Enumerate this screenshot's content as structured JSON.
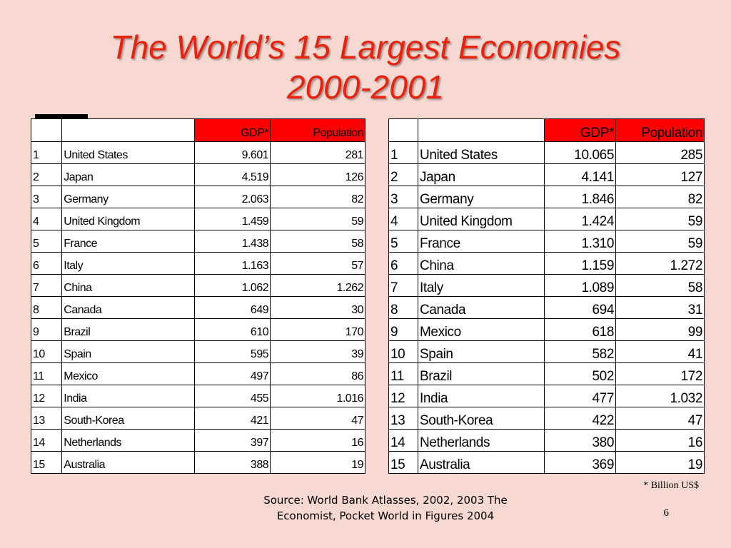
{
  "slide": {
    "title_line1": "The World’s 15 Largest Economies",
    "title_line2": "2000-2001",
    "footnote": "* Billion US$",
    "source_line1": "Source: World Bank Atlasses, 2002, 2003  The",
    "source_line2": "Economist, Pocket World in Figures 2004",
    "page_number": "6",
    "accent_color": "#e8220c",
    "header_highlight_color": "#ff0000",
    "background_color": "#f7d9d2"
  },
  "tables": [
    {
      "headers": [
        "",
        "",
        "GDP*",
        "Population"
      ],
      "rows": [
        [
          "1",
          "United States",
          "9.601",
          "281"
        ],
        [
          "2",
          "Japan",
          "4.519",
          "126"
        ],
        [
          "3",
          "Germany",
          "2.063",
          "82"
        ],
        [
          "4",
          "United Kingdom",
          "1.459",
          "59"
        ],
        [
          "5",
          "France",
          "1.438",
          "58"
        ],
        [
          "6",
          "Italy",
          "1.163",
          "57"
        ],
        [
          "7",
          "China",
          "1.062",
          "1.262"
        ],
        [
          "8",
          "Canada",
          "649",
          "30"
        ],
        [
          "9",
          "Brazil",
          "610",
          "170"
        ],
        [
          "10",
          "Spain",
          "595",
          "39"
        ],
        [
          "11",
          "Mexico",
          "497",
          "86"
        ],
        [
          "12",
          "India",
          "455",
          "1.016"
        ],
        [
          "13",
          "South-Korea",
          "421",
          "47"
        ],
        [
          "14",
          "Netherlands",
          "397",
          "16"
        ],
        [
          "15",
          "Australia",
          "388",
          "19"
        ]
      ]
    },
    {
      "headers": [
        "",
        "",
        "GDP*",
        "Population"
      ],
      "rows": [
        [
          "1",
          "United States",
          "10.065",
          "285"
        ],
        [
          "2",
          "Japan",
          "4.141",
          "127"
        ],
        [
          "3",
          "Germany",
          "1.846",
          "82"
        ],
        [
          "4",
          "United Kingdom",
          "1.424",
          "59"
        ],
        [
          "5",
          "France",
          "1.310",
          "59"
        ],
        [
          "6",
          "China",
          "1.159",
          "1.272"
        ],
        [
          "7",
          "Italy",
          "1.089",
          "58"
        ],
        [
          "8",
          "Canada",
          "694",
          "31"
        ],
        [
          "9",
          "Mexico",
          "618",
          "99"
        ],
        [
          "10",
          "Spain",
          "582",
          "41"
        ],
        [
          "11",
          "Brazil",
          "502",
          "172"
        ],
        [
          "12",
          "India",
          "477",
          "1.032"
        ],
        [
          "13",
          "South-Korea",
          "422",
          "47"
        ],
        [
          "14",
          "Netherlands",
          "380",
          "16"
        ],
        [
          "15",
          "Australia",
          "369",
          "19"
        ]
      ]
    }
  ]
}
